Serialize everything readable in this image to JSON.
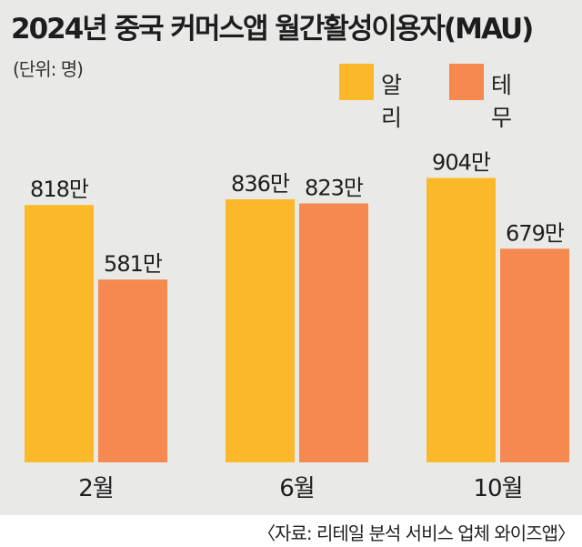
{
  "title": "2024년 중국 커머스앱 월간활성이용자(MAU)",
  "unit_note": "(단위: 명)",
  "source": "〈자료: 리테일 분석 서비스 업체 와이즈앱〉",
  "colors": {
    "panel": "#e9e9e7",
    "ali": "#fbb92a",
    "temu": "#f6894f"
  },
  "chart_data": {
    "type": "bar",
    "categories": [
      "2월",
      "6월",
      "10월"
    ],
    "series": [
      {
        "name": "알리",
        "values": [
          818,
          836,
          904
        ],
        "labels": [
          "818만",
          "836만",
          "904만"
        ],
        "color": "#fbb92a"
      },
      {
        "name": "테무",
        "values": [
          581,
          823,
          679
        ],
        "labels": [
          "581만",
          "823만",
          "679만"
        ],
        "color": "#f6894f"
      }
    ],
    "value_unit": "만 명",
    "legend_position": "top-right",
    "grid": false
  }
}
